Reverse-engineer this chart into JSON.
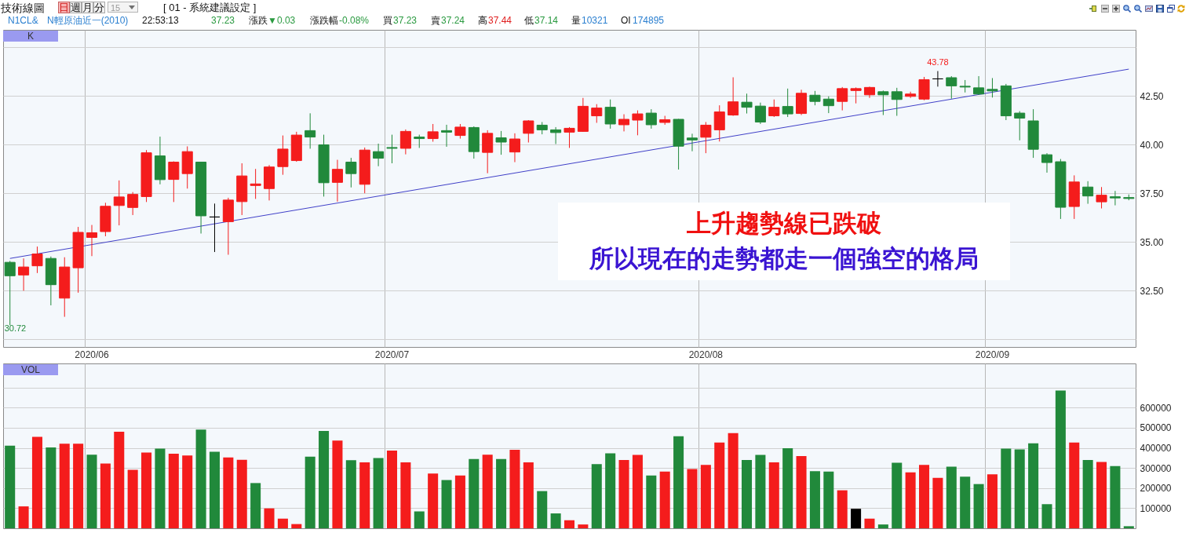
{
  "chart_data": [
    {
      "type": "candlestick",
      "title": "K",
      "categories": [
        null,
        null,
        null,
        null,
        null,
        null,
        "2020/06",
        null,
        null,
        null,
        null,
        null,
        null,
        null,
        null,
        null,
        null,
        null,
        null,
        null,
        null,
        null,
        null,
        null,
        null,
        null,
        null,
        null,
        "2020/07",
        null,
        null,
        null,
        null,
        null,
        null,
        null,
        null,
        null,
        null,
        null,
        null,
        null,
        null,
        null,
        null,
        null,
        null,
        null,
        null,
        null,
        null,
        "2020/08",
        null,
        null,
        null,
        null,
        null,
        null,
        null,
        null,
        null,
        null,
        null,
        null,
        null,
        null,
        null,
        null,
        null,
        null,
        null,
        null,
        "2020/09",
        null,
        null,
        null,
        null,
        null,
        null,
        null,
        null,
        null,
        null
      ],
      "ohlc": [
        [
          33.95,
          34.02,
          30.72,
          33.26
        ],
        [
          33.3,
          34.15,
          32.49,
          33.71
        ],
        [
          33.77,
          34.76,
          33.4,
          34.38
        ],
        [
          34.15,
          34.25,
          31.74,
          32.8
        ],
        [
          32.11,
          34.21,
          31.15,
          33.71
        ],
        [
          33.67,
          35.77,
          32.39,
          35.49
        ],
        [
          35.23,
          35.87,
          34.27,
          35.47
        ],
        [
          35.53,
          37.01,
          35.29,
          36.83
        ],
        [
          36.87,
          38.16,
          35.85,
          37.31
        ],
        [
          36.77,
          37.56,
          36.38,
          37.44
        ],
        [
          37.33,
          39.72,
          37.05,
          39.58
        ],
        [
          39.42,
          40.41,
          37.96,
          38.2
        ],
        [
          38.21,
          39.14,
          37.05,
          39.1
        ],
        [
          38.51,
          39.91,
          37.74,
          39.64
        ],
        [
          39.1,
          39.12,
          35.43,
          36.34
        ],
        [
          36.28,
          36.97,
          34.48,
          36.28
        ],
        [
          36.04,
          37.27,
          34.34,
          37.15
        ],
        [
          37.07,
          39.04,
          36.38,
          38.39
        ],
        [
          37.9,
          38.75,
          37.21,
          37.98
        ],
        [
          37.74,
          38.95,
          37.13,
          38.85
        ],
        [
          38.87,
          40.47,
          38.45,
          39.77
        ],
        [
          39.18,
          40.66,
          39.12,
          40.49
        ],
        [
          40.72,
          41.61,
          39.79,
          40.39
        ],
        [
          39.99,
          40.51,
          37.33,
          38.04
        ],
        [
          38.06,
          39.22,
          37.07,
          38.73
        ],
        [
          39.1,
          39.32,
          37.8,
          38.51
        ],
        [
          37.96,
          39.85,
          37.5,
          39.72
        ],
        [
          39.64,
          40.05,
          38.89,
          39.3
        ],
        [
          39.85,
          40.51,
          39.04,
          39.81
        ],
        [
          39.81,
          40.78,
          39.5,
          40.68
        ],
        [
          40.39,
          40.51,
          39.83,
          40.31
        ],
        [
          40.31,
          41.06,
          40.15,
          40.66
        ],
        [
          40.72,
          41.02,
          39.89,
          40.64
        ],
        [
          40.47,
          41.06,
          40.31,
          40.9
        ],
        [
          40.88,
          40.94,
          39.28,
          39.64
        ],
        [
          39.6,
          40.74,
          38.53,
          40.58
        ],
        [
          40.35,
          40.7,
          39.48,
          40.13
        ],
        [
          39.62,
          40.58,
          39.1,
          40.29
        ],
        [
          40.58,
          41.26,
          40.11,
          41.22
        ],
        [
          41.0,
          41.16,
          40.53,
          40.76
        ],
        [
          40.76,
          40.9,
          40.03,
          40.62
        ],
        [
          40.64,
          40.9,
          39.83,
          40.84
        ],
        [
          40.68,
          42.4,
          40.66,
          41.97
        ],
        [
          41.48,
          42.08,
          41.12,
          41.88
        ],
        [
          41.92,
          42.32,
          40.82,
          41.06
        ],
        [
          41.02,
          41.56,
          40.68,
          41.3
        ],
        [
          41.26,
          41.76,
          40.48,
          41.58
        ],
        [
          41.62,
          41.82,
          40.82,
          41.02
        ],
        [
          41.14,
          41.48,
          41.02,
          41.28
        ],
        [
          41.3,
          41.32,
          38.72,
          39.92
        ],
        [
          40.34,
          40.56,
          39.66,
          40.24
        ],
        [
          40.38,
          41.16,
          39.56,
          41.0
        ],
        [
          40.76,
          42.02,
          40.16,
          41.68
        ],
        [
          41.52,
          43.46,
          41.48,
          42.2
        ],
        [
          42.18,
          42.62,
          41.6,
          41.92
        ],
        [
          41.98,
          42.16,
          41.06,
          41.16
        ],
        [
          41.48,
          42.32,
          41.42,
          41.92
        ],
        [
          41.96,
          42.88,
          41.42,
          41.58
        ],
        [
          41.6,
          42.82,
          41.52,
          42.64
        ],
        [
          42.54,
          42.76,
          42.02,
          42.22
        ],
        [
          42.34,
          42.48,
          41.62,
          42.0
        ],
        [
          42.22,
          42.96,
          41.76,
          42.88
        ],
        [
          42.78,
          42.94,
          42.12,
          42.88
        ],
        [
          42.56,
          42.98,
          42.4,
          42.94
        ],
        [
          42.72,
          42.78,
          41.52,
          42.56
        ],
        [
          42.72,
          42.92,
          41.48,
          42.32
        ],
        [
          42.48,
          42.72,
          42.4,
          42.6
        ],
        [
          42.34,
          43.48,
          42.28,
          43.34
        ],
        [
          43.38,
          43.78,
          42.98,
          43.38
        ],
        [
          43.44,
          43.52,
          42.36,
          43.02
        ],
        [
          43.0,
          43.32,
          42.68,
          42.96
        ],
        [
          42.92,
          43.52,
          42.56,
          42.6
        ],
        [
          42.84,
          43.42,
          42.42,
          42.76
        ],
        [
          43.02,
          43.12,
          41.26,
          41.48
        ],
        [
          41.62,
          41.72,
          40.22,
          41.36
        ],
        [
          41.22,
          41.82,
          39.32,
          39.76
        ],
        [
          39.48,
          39.56,
          38.56,
          39.08
        ],
        [
          39.12,
          39.26,
          36.18,
          36.78
        ],
        [
          36.82,
          38.42,
          36.18,
          38.08
        ],
        [
          37.82,
          38.12,
          36.96,
          37.36
        ],
        [
          37.06,
          37.82,
          36.72,
          37.4
        ],
        [
          37.32,
          37.62,
          36.88,
          37.26
        ],
        [
          37.28,
          37.44,
          37.14,
          37.23
        ]
      ],
      "colors": [
        "#21893b",
        "#f41c1c",
        "#f41c1c",
        "#21893b",
        "#f41c1c",
        "#f41c1c",
        "#f41c1c",
        "#f41c1c",
        "#f41c1c",
        "#f41c1c",
        "#f41c1c",
        "#21893b",
        "#f41c1c",
        "#f41c1c",
        "#21893b",
        "#000000",
        "#f41c1c",
        "#f41c1c",
        "#f41c1c",
        "#f41c1c",
        "#f41c1c",
        "#f41c1c",
        "#21893b",
        "#21893b",
        "#f41c1c",
        "#21893b",
        "#f41c1c",
        "#21893b",
        "#21893b",
        "#f41c1c",
        "#21893b",
        "#f41c1c",
        "#21893b",
        "#f41c1c",
        "#21893b",
        "#f41c1c",
        "#21893b",
        "#f41c1c",
        "#f41c1c",
        "#21893b",
        "#21893b",
        "#f41c1c",
        "#f41c1c",
        "#f41c1c",
        "#21893b",
        "#f41c1c",
        "#f41c1c",
        "#21893b",
        "#f41c1c",
        "#21893b",
        "#21893b",
        "#f41c1c",
        "#f41c1c",
        "#f41c1c",
        "#21893b",
        "#21893b",
        "#f41c1c",
        "#21893b",
        "#f41c1c",
        "#21893b",
        "#21893b",
        "#f41c1c",
        "#f41c1c",
        "#f41c1c",
        "#21893b",
        "#21893b",
        "#f41c1c",
        "#f41c1c",
        "#000000",
        "#21893b",
        "#21893b",
        "#21893b",
        "#21893b",
        "#21893b",
        "#21893b",
        "#21893b",
        "#21893b",
        "#21893b",
        "#f41c1c",
        "#21893b",
        "#f41c1c",
        "#21893b",
        "#21893b"
      ],
      "series": [
        {
          "type": "line",
          "color": "#4040c8",
          "values": [
            34.15,
            null,
            null,
            null,
            null,
            null,
            null,
            null,
            null,
            null,
            null,
            null,
            null,
            null,
            null,
            null,
            null,
            null,
            null,
            null,
            null,
            null,
            null,
            null,
            null,
            null,
            null,
            null,
            null,
            null,
            null,
            null,
            null,
            null,
            null,
            null,
            null,
            null,
            null,
            null,
            null,
            null,
            null,
            null,
            null,
            null,
            null,
            null,
            null,
            null,
            null,
            null,
            null,
            null,
            null,
            null,
            null,
            null,
            null,
            null,
            null,
            null,
            null,
            null,
            null,
            null,
            null,
            null,
            null,
            null,
            null,
            null,
            null,
            null,
            null,
            null,
            null,
            null,
            null,
            null,
            null,
            null,
            43.88
          ]
        }
      ],
      "ylim": [
        29.6,
        45.9
      ],
      "yticks": [
        {
          "value": 30,
          "label": null
        },
        {
          "value": 32.5,
          "label": "32.50"
        },
        {
          "value": 35,
          "label": "35.00"
        },
        {
          "value": 37.5,
          "label": "37.50"
        },
        {
          "value": 40,
          "label": "40.00"
        },
        {
          "value": 42.5,
          "label": "42.50"
        },
        {
          "value": 45,
          "label": null
        }
      ],
      "grid": true,
      "annotations": [
        "技術線圖",
        "日",
        "週",
        "月",
        "分",
        "15",
        "[ 01 - 系統建議設定 ]",
        "N1CL&",
        "N輕原油近一(2010)",
        "22:53:13",
        "37.23",
        "漲跌",
        "▼0.03",
        "漲跌幅",
        "-0.08%",
        "買",
        "37.23",
        "賣",
        "37.24",
        "高",
        "37.44",
        "低",
        "37.14",
        "量",
        "10321",
        "OI",
        "174895",
        "上升趨勢線已跌破",
        "所以現在的走勢都走一個強空的格局",
        "30.72",
        {
          "text": "43.78",
          "y": 43.78
        }
      ]
    },
    {
      "type": "bar",
      "title": "VOL",
      "categories": [
        null,
        null,
        null,
        null,
        null,
        null,
        "2020/06",
        null,
        null,
        null,
        null,
        null,
        null,
        null,
        null,
        null,
        null,
        null,
        null,
        null,
        null,
        null,
        null,
        null,
        null,
        null,
        null,
        null,
        "2020/07",
        null,
        null,
        null,
        null,
        null,
        null,
        null,
        null,
        null,
        null,
        null,
        null,
        null,
        null,
        null,
        null,
        null,
        null,
        null,
        null,
        null,
        null,
        "2020/08",
        null,
        null,
        null,
        null,
        null,
        null,
        null,
        null,
        null,
        null,
        null,
        null,
        null,
        null,
        null,
        null,
        null,
        null,
        null,
        null,
        "2020/09",
        null,
        null,
        null,
        null,
        null,
        null,
        null,
        null,
        null,
        null
      ],
      "values": [
        411000,
        109000,
        455000,
        402000,
        421000,
        421000,
        366000,
        322000,
        480000,
        291000,
        377000,
        396000,
        371000,
        362000,
        491000,
        381000,
        352000,
        341000,
        225000,
        99000,
        48000,
        21000,
        356000,
        484000,
        436000,
        339000,
        328000,
        349000,
        387000,
        328000,
        84000,
        272000,
        240000,
        263000,
        345000,
        366000,
        345000,
        390000,
        328000,
        185000,
        74000,
        40000,
        19000,
        319000,
        373000,
        340000,
        365000,
        263000,
        282000,
        458000,
        295000,
        315000,
        427000,
        473000,
        340000,
        365000,
        328000,
        398000,
        359000,
        284000,
        282000,
        189000,
        97000,
        48000,
        19000,
        326000,
        278000,
        315000,
        251000,
        307000,
        257000,
        220000,
        268000,
        396000,
        392000,
        423000,
        120000,
        685000,
        427000,
        340000,
        330000,
        309000,
        10321
      ],
      "colors": [
        "#21893b",
        "#f41c1c",
        "#f41c1c",
        "#21893b",
        "#f41c1c",
        "#f41c1c",
        "#21893b",
        "#f41c1c",
        "#f41c1c",
        "#f41c1c",
        "#f41c1c",
        "#21893b",
        "#f41c1c",
        "#f41c1c",
        "#21893b",
        "#21893b",
        "#f41c1c",
        "#f41c1c",
        "#21893b",
        "#f41c1c",
        "#f41c1c",
        "#f41c1c",
        "#21893b",
        "#21893b",
        "#f41c1c",
        "#21893b",
        "#f41c1c",
        "#21893b",
        "#f41c1c",
        "#f41c1c",
        "#21893b",
        "#f41c1c",
        "#21893b",
        "#f41c1c",
        "#21893b",
        "#f41c1c",
        "#21893b",
        "#f41c1c",
        "#f41c1c",
        "#21893b",
        "#21893b",
        "#f41c1c",
        "#f41c1c",
        "#21893b",
        "#21893b",
        "#f41c1c",
        "#f41c1c",
        "#21893b",
        "#f41c1c",
        "#21893b",
        "#f41c1c",
        "#f41c1c",
        "#f41c1c",
        "#f41c1c",
        "#21893b",
        "#21893b",
        "#f41c1c",
        "#21893b",
        "#f41c1c",
        "#21893b",
        "#21893b",
        "#f41c1c",
        "#000000",
        "#f41c1c",
        "#21893b",
        "#21893b",
        "#f41c1c",
        "#f41c1c",
        "#f41c1c",
        "#21893b",
        "#21893b",
        "#21893b",
        "#f41c1c",
        "#21893b",
        "#21893b",
        "#21893b",
        "#21893b",
        "#21893b",
        "#f41c1c",
        "#21893b",
        "#f41c1c",
        "#21893b",
        "#21893b"
      ],
      "ylim": [
        0,
        820000
      ],
      "yticks": [
        100000,
        200000,
        300000,
        400000,
        500000,
        600000,
        {
          "value": 700000,
          "label": null
        }
      ],
      "grid": true,
      "tick_labels": "y"
    }
  ]
}
